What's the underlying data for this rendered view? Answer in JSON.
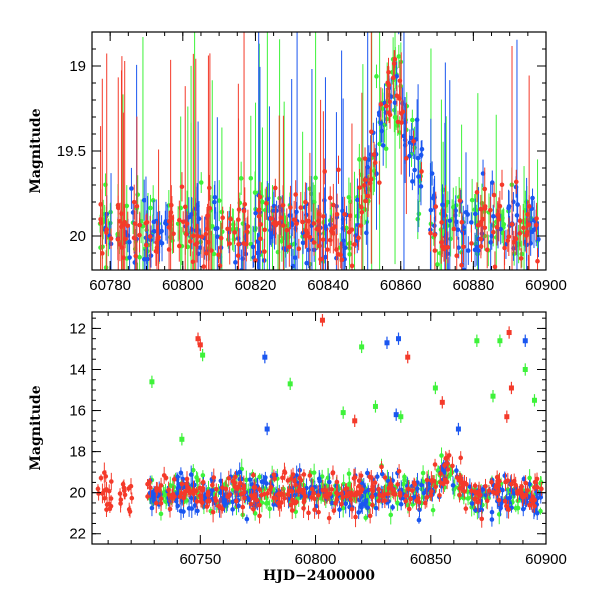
{
  "colors": {
    "green": "#3ef23a",
    "blue": "#1a56f0",
    "red": "#f43a2a"
  },
  "chart_data": [
    {
      "type": "scatter",
      "title": "",
      "xlabel": "",
      "ylabel": "Magnitude",
      "xlim": [
        60775,
        60900
      ],
      "ylim": [
        20.2,
        18.8
      ],
      "y_inverted": true,
      "xticks": [
        60780,
        60800,
        60820,
        60840,
        60860,
        60880,
        60900
      ],
      "xtick_labels": [
        "60780",
        "60800",
        "60820",
        "60840",
        "60860",
        "60880",
        "60900"
      ],
      "yticks": [
        19,
        19.5,
        20
      ],
      "ytick_labels": [
        "19",
        "19.5",
        "20"
      ],
      "error_bars": true,
      "series_colors": [
        "green",
        "blue",
        "red"
      ],
      "features": [
        {
          "kind": "baseline",
          "x_range": [
            60775,
            60900
          ],
          "mag": 19.95,
          "note": "dense points with error bars"
        },
        {
          "kind": "peak",
          "x_center": 60858,
          "mag": 19.1,
          "note": "brightening event rising from ~60845, peaking near 60858"
        }
      ]
    },
    {
      "type": "scatter",
      "title": "",
      "xlabel": "HJD−2400000",
      "ylabel": "Magnitude",
      "xlim": [
        60703,
        60900
      ],
      "ylim": [
        22.5,
        11.2
      ],
      "y_inverted": true,
      "xticks": [
        60750,
        60800,
        60850,
        60900
      ],
      "xtick_labels": [
        "60750",
        "60800",
        "60850",
        "60900"
      ],
      "yticks": [
        12,
        14,
        16,
        18,
        20,
        22
      ],
      "ytick_labels": [
        "12",
        "14",
        "16",
        "18",
        "20",
        "22"
      ],
      "error_bars": true,
      "series_colors": [
        "green",
        "blue",
        "red"
      ],
      "features": [
        {
          "kind": "baseline",
          "x_range": [
            60705,
            60900
          ],
          "mag": 20.0,
          "note": "dense points, mag ~19-21"
        },
        {
          "kind": "bump",
          "x_center": 60858,
          "mag": 18.9,
          "note": "brightening near 60858"
        }
      ],
      "outliers": [
        {
          "series": "red",
          "x": 60749,
          "y": 12.5
        },
        {
          "series": "red",
          "x": 60750,
          "y": 12.8
        },
        {
          "series": "green",
          "x": 60751,
          "y": 13.3
        },
        {
          "series": "green",
          "x": 60729,
          "y": 14.6
        },
        {
          "series": "blue",
          "x": 60778,
          "y": 13.4
        },
        {
          "series": "blue",
          "x": 60779,
          "y": 16.9
        },
        {
          "series": "green",
          "x": 60789,
          "y": 14.7
        },
        {
          "series": "red",
          "x": 60803,
          "y": 11.6
        },
        {
          "series": "green",
          "x": 60820,
          "y": 12.9
        },
        {
          "series": "blue",
          "x": 60831,
          "y": 12.7
        },
        {
          "series": "blue",
          "x": 60836,
          "y": 12.5
        },
        {
          "series": "red",
          "x": 60840,
          "y": 13.4
        },
        {
          "series": "green",
          "x": 60812,
          "y": 16.1
        },
        {
          "series": "red",
          "x": 60817,
          "y": 16.5
        },
        {
          "series": "green",
          "x": 60826,
          "y": 15.8
        },
        {
          "series": "blue",
          "x": 60835,
          "y": 16.2
        },
        {
          "series": "green",
          "x": 60837,
          "y": 16.3
        },
        {
          "series": "green",
          "x": 60852,
          "y": 14.9
        },
        {
          "series": "red",
          "x": 60855,
          "y": 15.6
        },
        {
          "series": "green",
          "x": 60870,
          "y": 12.6
        },
        {
          "series": "green",
          "x": 60880,
          "y": 12.6
        },
        {
          "series": "red",
          "x": 60884,
          "y": 12.2
        },
        {
          "series": "blue",
          "x": 60891,
          "y": 12.6
        },
        {
          "series": "red",
          "x": 60885,
          "y": 14.9
        },
        {
          "series": "green",
          "x": 60895,
          "y": 15.5
        },
        {
          "series": "green",
          "x": 60877,
          "y": 15.3
        },
        {
          "series": "green",
          "x": 60742,
          "y": 17.4
        },
        {
          "series": "blue",
          "x": 60862,
          "y": 16.9
        },
        {
          "series": "red",
          "x": 60883,
          "y": 16.3
        },
        {
          "series": "green",
          "x": 60891,
          "y": 14.0
        }
      ]
    }
  ]
}
